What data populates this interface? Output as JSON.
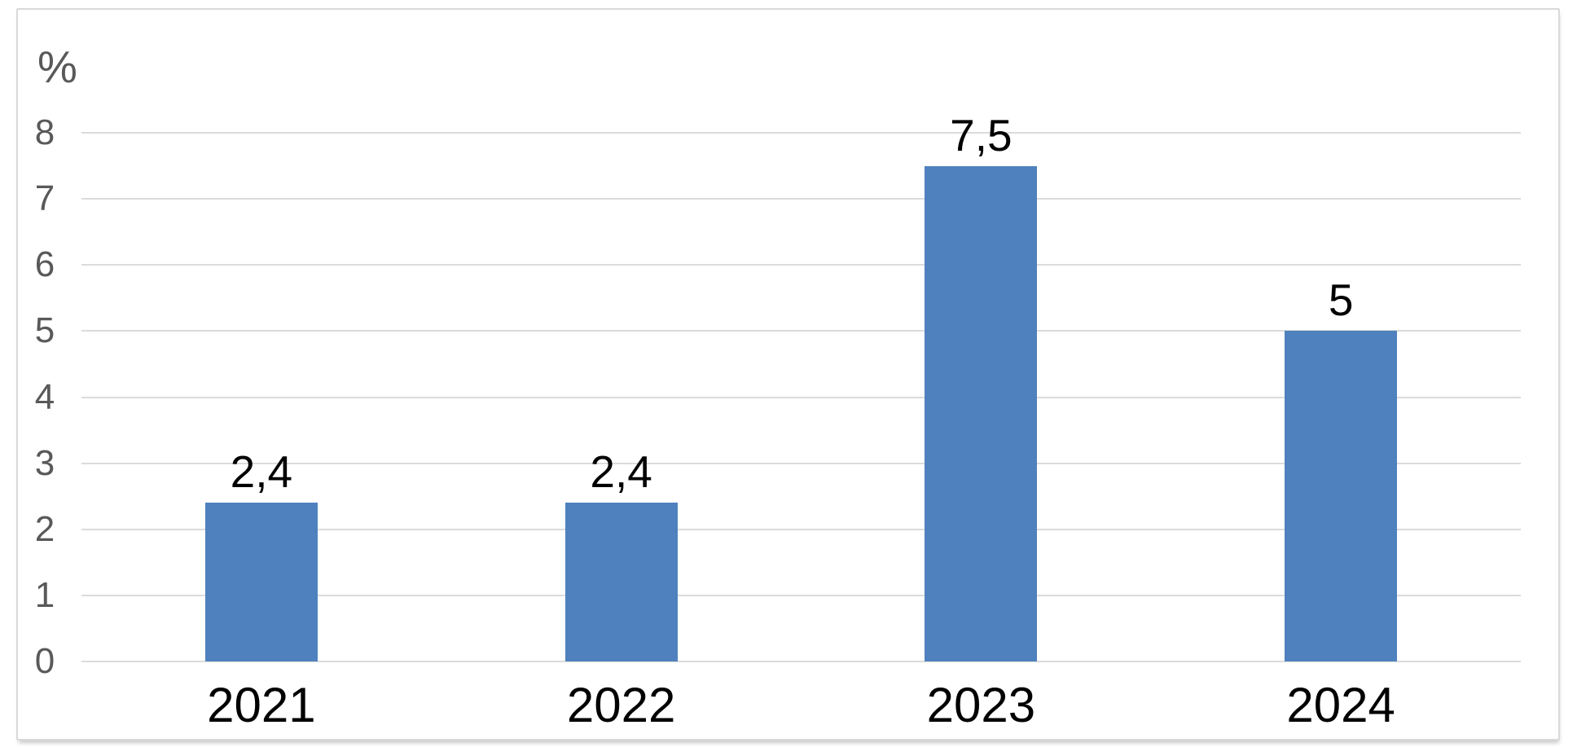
{
  "chart_data": {
    "type": "bar",
    "title": "",
    "ylabel": "%",
    "xlabel": "",
    "categories": [
      "2021",
      "2022",
      "2023",
      "2024"
    ],
    "values": [
      2.4,
      2.4,
      7.5,
      5
    ],
    "value_labels": [
      "2,4",
      "2,4",
      "7,5",
      "5"
    ],
    "ylim": [
      0,
      8
    ],
    "ytick_step": 1,
    "ytick_labels": [
      "0",
      "1",
      "2",
      "3",
      "4",
      "5",
      "6",
      "7",
      "8"
    ],
    "grid": true,
    "legend": "none",
    "colors": {
      "bar": "#4e81bd",
      "gridline": "#dbdbdb",
      "frame_border": "#d9d9d9",
      "tick_text": "#595959",
      "label_text": "#000000",
      "background": "#ffffff"
    }
  }
}
